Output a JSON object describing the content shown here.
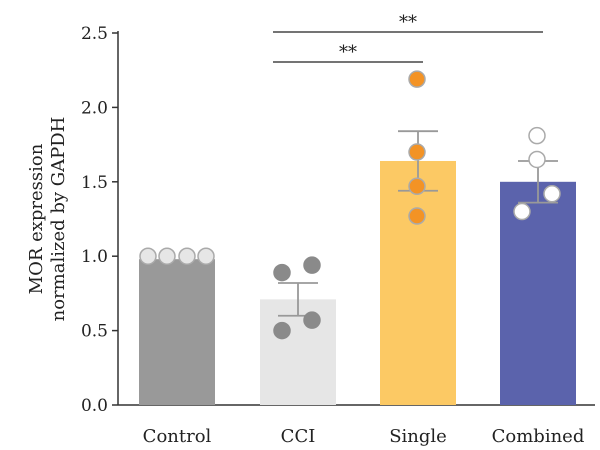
{
  "chart_data": {
    "type": "bar",
    "ylabel_lines": [
      "MOR expression",
      "normalized by GAPDH"
    ],
    "ylim": [
      0,
      2.5
    ],
    "yticks": [
      "0.0",
      "0.5",
      "1.0",
      "1.5",
      "2.0",
      "2.5"
    ],
    "ytick_values": [
      0,
      0.5,
      1.0,
      1.5,
      2.0,
      2.5
    ],
    "categories": [
      "Control",
      "CCI",
      "Single",
      "Combined"
    ],
    "values": [
      0.98,
      0.71,
      1.64,
      1.5
    ],
    "errors": [
      0.0,
      0.11,
      0.2,
      0.14
    ],
    "bar_colors": [
      "#999999",
      "#e6e6e6",
      "#fcc964",
      "#5b63ac"
    ],
    "points": [
      [
        1.0,
        1.0,
        1.0,
        1.0
      ],
      [
        0.89,
        0.94,
        0.57,
        0.5
      ],
      [
        2.19,
        1.7,
        1.47,
        1.27
      ],
      [
        1.81,
        1.65,
        1.42,
        1.3
      ]
    ],
    "point_fill": [
      "#e6e6e6",
      "#8a8a8a",
      "#f39325",
      "#ffffff"
    ],
    "point_stroke": [
      "#aaaaaa",
      "#8a8a8a",
      "#aaaaaa",
      "#aaaaaa"
    ],
    "significance": [
      {
        "from": 1,
        "to": 2,
        "y": 2.32,
        "label": "**"
      },
      {
        "from": 1,
        "to": 3,
        "y": 2.52,
        "label": "**"
      }
    ]
  }
}
